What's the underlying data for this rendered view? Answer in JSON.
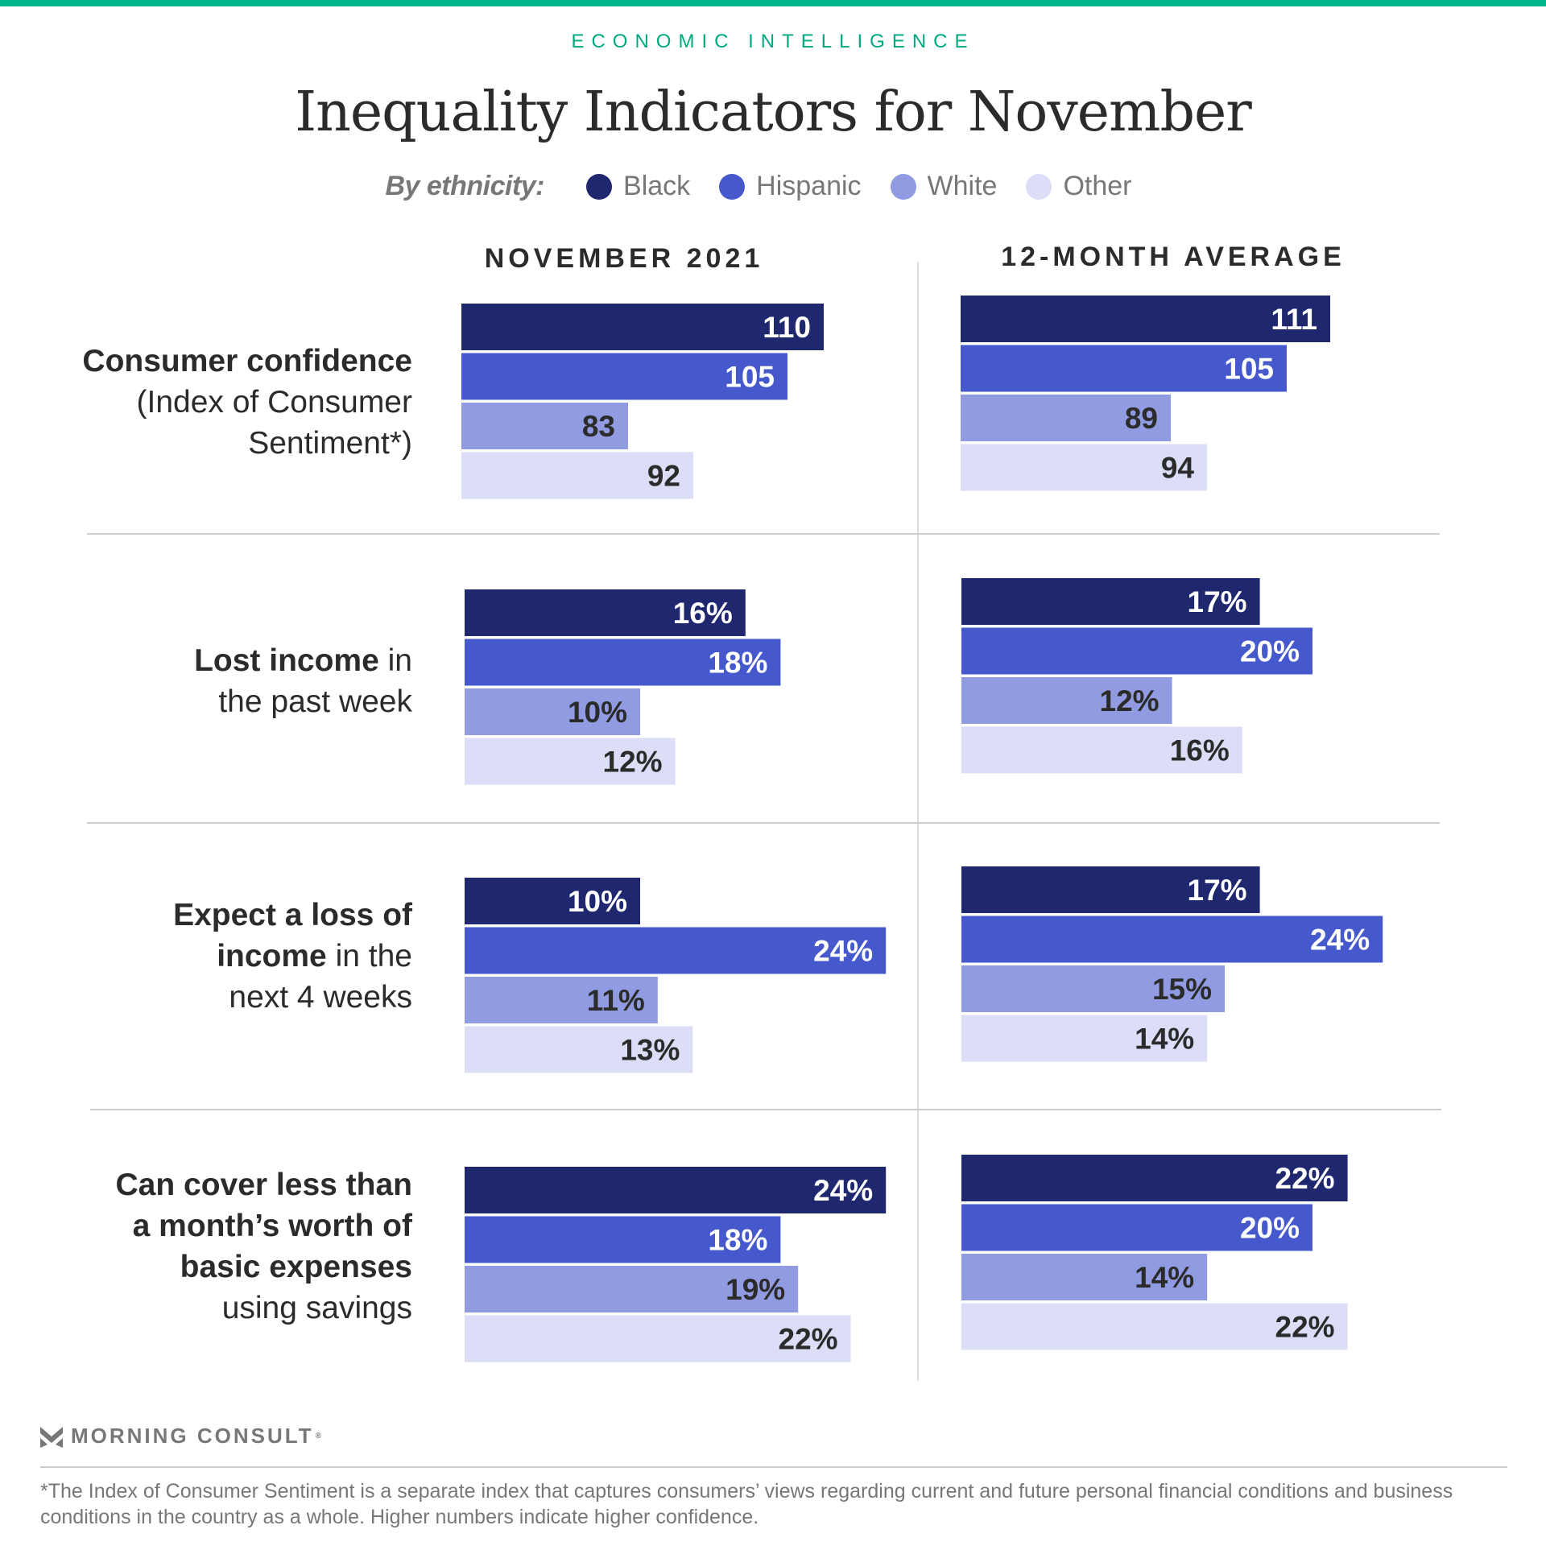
{
  "header": {
    "kicker": "ECONOMIC INTELLIGENCE",
    "title": "Inequality Indicators for November"
  },
  "legend": {
    "title": "By ethnicity:",
    "items": [
      {
        "label": "Black",
        "color": "#1f276e"
      },
      {
        "label": "Hispanic",
        "color": "#4659cc"
      },
      {
        "label": "White",
        "color": "#909be1"
      },
      {
        "label": "Other",
        "color": "#dcdef7"
      }
    ]
  },
  "columns": [
    "NOVEMBER 2021",
    "12-MONTH AVERAGE"
  ],
  "rows": [
    {
      "label_bold": "Consumer confidence",
      "label_regular": "(Index of Consumer Sentiment*)",
      "label_lines": [
        [
          "b",
          "Consumer confidence"
        ],
        [
          "r",
          "(Index of Consumer"
        ],
        [
          "r",
          "Sentiment*)"
        ]
      ]
    },
    {
      "label_lines": [
        [
          "b",
          "Lost income"
        ],
        [
          "r",
          " in"
        ],
        [
          "br",
          ""
        ],
        [
          "r",
          "the past week"
        ]
      ]
    },
    {
      "label_lines": [
        [
          "b",
          "Expect a loss of"
        ],
        [
          "br",
          ""
        ],
        [
          "b",
          "income"
        ],
        [
          "r",
          " in the"
        ],
        [
          "br",
          ""
        ],
        [
          "r",
          "next 4 weeks"
        ]
      ]
    },
    {
      "label_lines": [
        [
          "b",
          "Can cover less than"
        ],
        [
          "br",
          ""
        ],
        [
          "b",
          "a month’s worth of"
        ],
        [
          "br",
          ""
        ],
        [
          "b",
          "basic expenses"
        ],
        [
          "br",
          ""
        ],
        [
          "r",
          "using savings"
        ]
      ]
    }
  ],
  "footer": {
    "brand": "MORNING CONSULT",
    "brand_mark": "®",
    "footnote": "*The Index of Consumer Sentiment is a separate index that captures consumers’ views regarding current and future personal financial conditions and business conditions in the country as a whole. Higher numbers indicate higher confidence."
  },
  "chart_data": {
    "type": "bar",
    "orientation": "horizontal",
    "title": "Inequality Indicators for November",
    "categories": [
      "Black",
      "Hispanic",
      "White",
      "Other"
    ],
    "panels": [
      {
        "column": "NOVEMBER 2021",
        "groups": [
          {
            "metric": "Consumer confidence (Index of Consumer Sentiment*)",
            "unit": "index",
            "values": [
              110,
              105,
              83,
              92
            ],
            "labels": [
              "110",
              "105",
              "83",
              "92"
            ]
          },
          {
            "metric": "Lost income in the past week",
            "unit": "%",
            "values": [
              16,
              18,
              10,
              12
            ],
            "labels": [
              "16%",
              "18%",
              "10%",
              "12%"
            ]
          },
          {
            "metric": "Expect a loss of income in the next 4 weeks",
            "unit": "%",
            "values": [
              10,
              24,
              11,
              13
            ],
            "labels": [
              "10%",
              "24%",
              "11%",
              "13%"
            ]
          },
          {
            "metric": "Can cover less than a month's worth of basic expenses using savings",
            "unit": "%",
            "values": [
              24,
              18,
              19,
              22
            ],
            "labels": [
              "24%",
              "18%",
              "19%",
              "22%"
            ]
          }
        ]
      },
      {
        "column": "12-MONTH AVERAGE",
        "groups": [
          {
            "metric": "Consumer confidence (Index of Consumer Sentiment*)",
            "unit": "index",
            "values": [
              111,
              105,
              89,
              94
            ],
            "labels": [
              "111",
              "105",
              "89",
              "94"
            ]
          },
          {
            "metric": "Lost income in the past week",
            "unit": "%",
            "values": [
              17,
              20,
              12,
              16
            ],
            "labels": [
              "17%",
              "20%",
              "12%",
              "16%"
            ]
          },
          {
            "metric": "Expect a loss of income in the next 4 weeks",
            "unit": "%",
            "values": [
              17,
              24,
              15,
              14
            ],
            "labels": [
              "17%",
              "24%",
              "15%",
              "14%"
            ]
          },
          {
            "metric": "Can cover less than a month's worth of basic expenses using savings",
            "unit": "%",
            "values": [
              22,
              20,
              14,
              22
            ],
            "labels": [
              "22%",
              "20%",
              "14%",
              "22%"
            ]
          }
        ]
      }
    ],
    "index_axis_min": 60,
    "percent_axis_min": 0,
    "grid": false,
    "legend_position": "top-center",
    "label_colors": {
      "dark_bars": "#ffffff",
      "light_bars": "#2b2b2b"
    }
  }
}
